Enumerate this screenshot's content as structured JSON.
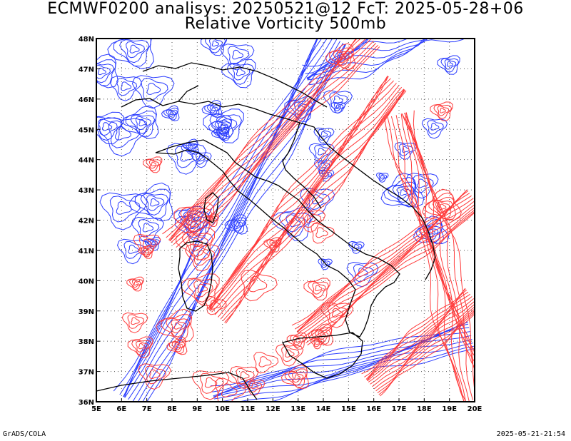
{
  "title": {
    "line1": "ECMWF0200 analisys: 20250521@12 FcT: 2025-05-28+06",
    "line2": "Relative Vorticity 500mb"
  },
  "axes": {
    "lon_labels": [
      "5E",
      "6E",
      "7E",
      "8E",
      "9E",
      "10E",
      "11E",
      "12E",
      "13E",
      "14E",
      "15E",
      "16E",
      "17E",
      "18E",
      "19E",
      "20E"
    ],
    "lat_labels": [
      "36N",
      "37N",
      "38N",
      "39N",
      "40N",
      "41N",
      "42N",
      "43N",
      "44N",
      "45N",
      "46N",
      "47N",
      "48N"
    ],
    "lon_range": [
      5,
      20
    ],
    "lat_range": [
      36,
      48
    ]
  },
  "colors": {
    "positive": "#ff3b3b",
    "negative": "#2a3cff",
    "coast": "#000000",
    "grid": "#555555"
  },
  "footer": {
    "left": "GrADS/COLA",
    "right": "2025-05-21-21:54"
  }
}
